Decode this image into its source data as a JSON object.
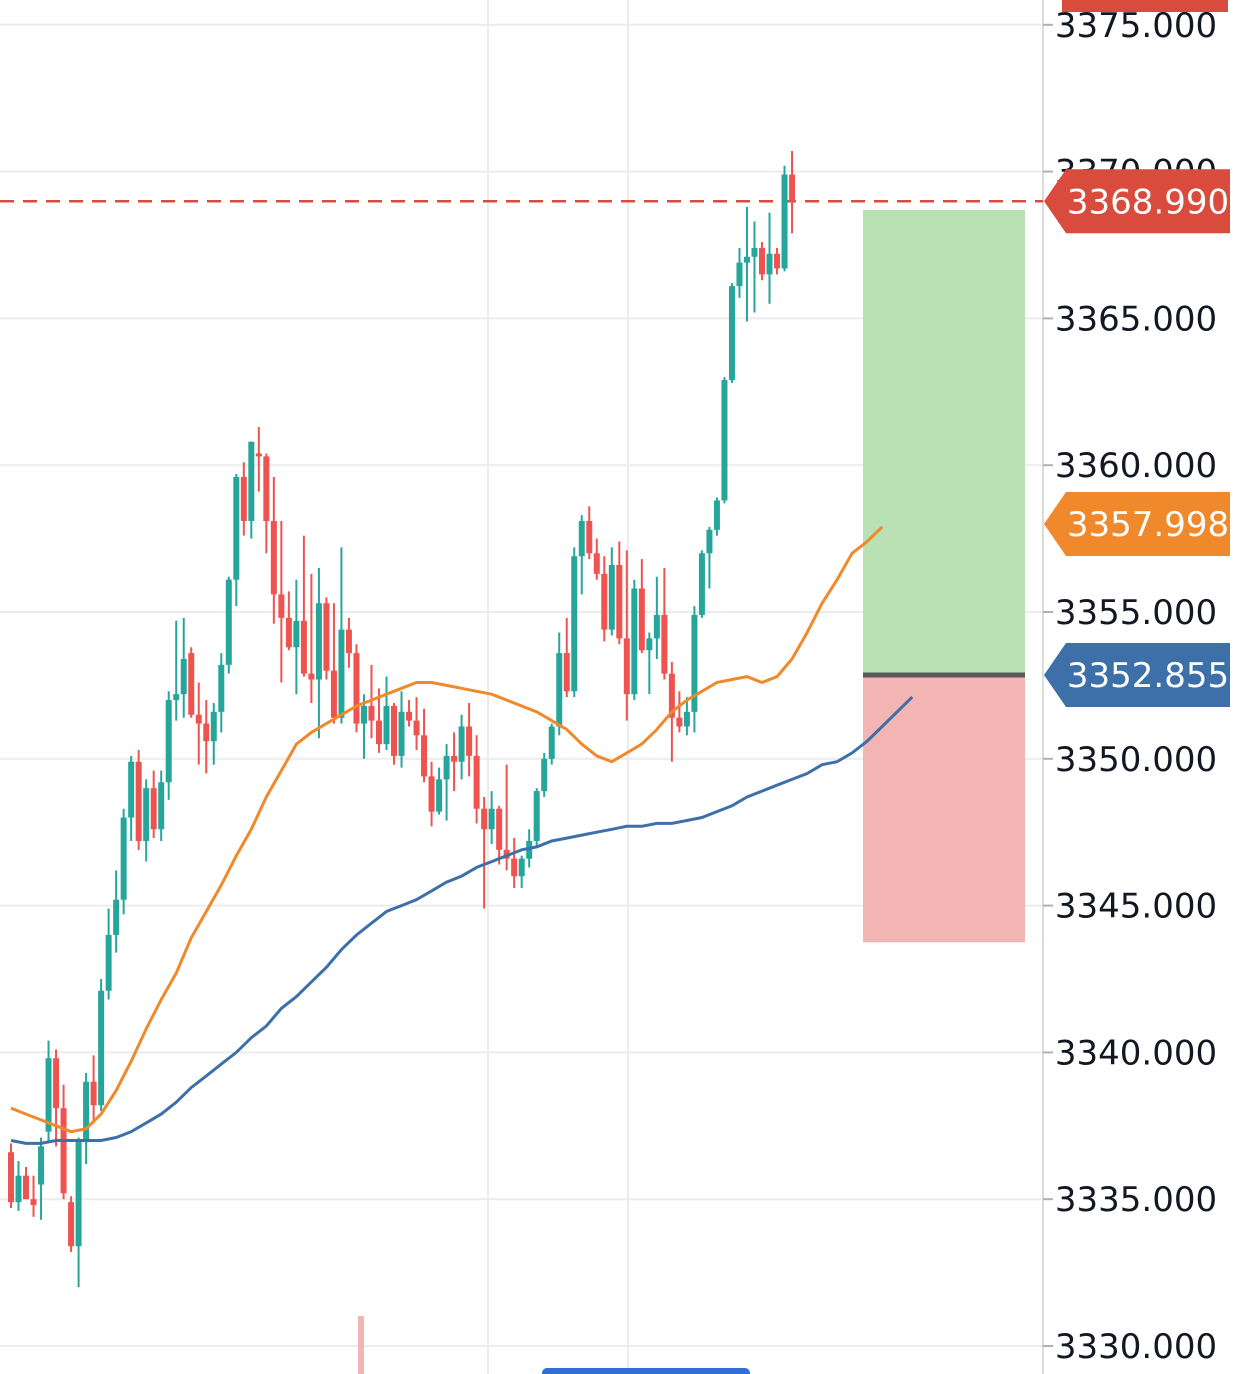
{
  "chart_data": {
    "type": "candlestick",
    "ylim": [
      3330,
      3376
    ],
    "y_ticks": [
      "3330.000",
      "3335.000",
      "3340.000",
      "3345.000",
      "3350.000",
      "3355.000",
      "3360.000",
      "3365.000",
      "3370.000",
      "3375.000"
    ],
    "grid": true,
    "colors": {
      "up": "#26a69a",
      "down": "#ef5350",
      "ma_fast": "#f0892b",
      "ma_slow": "#3d6fa8",
      "current_price": "#d94c3d",
      "entry": "#3d6fa8",
      "profit_zone": "#b9e1b3",
      "loss_zone": "#f3b4b4"
    },
    "candles": [
      [
        3336.6,
        3336.9,
        3334.7,
        3334.9
      ],
      [
        3334.9,
        3336.3,
        3334.6,
        3335.8
      ],
      [
        3335.8,
        3336.1,
        3335.0,
        3335.0
      ],
      [
        3335.0,
        3335.8,
        3334.4,
        3334.8
      ],
      [
        3335.5,
        3337.1,
        3334.3,
        3336.8
      ],
      [
        3337.3,
        3340.4,
        3337.0,
        3339.8
      ],
      [
        3339.8,
        3340.1,
        3336.8,
        3338.1
      ],
      [
        3338.1,
        3338.9,
        3335.0,
        3335.2
      ],
      [
        3334.9,
        3335.1,
        3333.2,
        3333.4
      ],
      [
        3333.4,
        3337.1,
        3332.0,
        3337.0
      ],
      [
        3337.0,
        3339.3,
        3336.2,
        3339.0
      ],
      [
        3339.0,
        3339.9,
        3337.6,
        3338.2
      ],
      [
        3338.2,
        3342.5,
        3338.0,
        3342.1
      ],
      [
        3342.1,
        3344.9,
        3341.8,
        3344.0
      ],
      [
        3344.0,
        3346.2,
        3343.4,
        3345.2
      ],
      [
        3345.2,
        3348.3,
        3344.7,
        3348.0
      ],
      [
        3348.0,
        3350.1,
        3347.2,
        3349.9
      ],
      [
        3349.9,
        3350.3,
        3346.9,
        3347.2
      ],
      [
        3347.2,
        3349.3,
        3346.5,
        3349.0
      ],
      [
        3349.0,
        3349.6,
        3347.3,
        3347.6
      ],
      [
        3347.6,
        3349.6,
        3347.2,
        3349.2
      ],
      [
        3349.2,
        3352.3,
        3348.6,
        3352.0
      ],
      [
        3352.0,
        3354.7,
        3351.3,
        3352.2
      ],
      [
        3352.2,
        3354.8,
        3351.4,
        3353.4
      ],
      [
        3353.6,
        3353.8,
        3351.4,
        3351.5
      ],
      [
        3351.5,
        3352.6,
        3349.8,
        3351.2
      ],
      [
        3351.2,
        3352.0,
        3349.5,
        3350.6
      ],
      [
        3350.6,
        3351.9,
        3349.8,
        3351.6
      ],
      [
        3351.6,
        3353.6,
        3350.9,
        3353.2
      ],
      [
        3353.2,
        3356.2,
        3352.9,
        3356.1
      ],
      [
        3356.1,
        3359.7,
        3355.2,
        3359.6
      ],
      [
        3359.6,
        3360.1,
        3357.6,
        3358.1
      ],
      [
        3358.1,
        3360.8,
        3357.5,
        3360.8
      ],
      [
        3360.4,
        3361.3,
        3359.1,
        3360.3
      ],
      [
        3360.3,
        3360.4,
        3357.0,
        3358.1
      ],
      [
        3358.1,
        3359.6,
        3354.6,
        3355.6
      ],
      [
        3355.6,
        3358.1,
        3352.6,
        3354.8
      ],
      [
        3354.8,
        3355.7,
        3353.7,
        3353.8
      ],
      [
        3353.8,
        3356.1,
        3352.2,
        3354.7
      ],
      [
        3354.7,
        3357.6,
        3352.8,
        3352.9
      ],
      [
        3352.9,
        3356.3,
        3351.9,
        3352.7
      ],
      [
        3352.7,
        3356.5,
        3350.7,
        3355.3
      ],
      [
        3355.3,
        3355.5,
        3352.7,
        3353.0
      ],
      [
        3353.0,
        3355.3,
        3351.2,
        3351.4
      ],
      [
        3351.4,
        3357.2,
        3351.2,
        3354.4
      ],
      [
        3354.4,
        3354.8,
        3353.1,
        3353.6
      ],
      [
        3353.6,
        3353.9,
        3350.9,
        3351.2
      ],
      [
        3351.2,
        3352.2,
        3350.0,
        3351.8
      ],
      [
        3351.8,
        3353.2,
        3350.7,
        3351.3
      ],
      [
        3351.3,
        3352.4,
        3350.2,
        3350.5
      ],
      [
        3350.5,
        3352.8,
        3350.3,
        3351.8
      ],
      [
        3351.8,
        3351.9,
        3349.8,
        3350.1
      ],
      [
        3350.1,
        3352.3,
        3349.7,
        3351.6
      ],
      [
        3351.6,
        3352.0,
        3351.1,
        3351.3
      ],
      [
        3351.3,
        3352.1,
        3350.3,
        3350.8
      ],
      [
        3350.8,
        3351.7,
        3349.2,
        3349.4
      ],
      [
        3349.4,
        3349.9,
        3347.7,
        3348.2
      ],
      [
        3348.2,
        3349.7,
        3348.1,
        3349.3
      ],
      [
        3349.3,
        3350.5,
        3347.9,
        3350.1
      ],
      [
        3350.1,
        3350.9,
        3348.9,
        3349.9
      ],
      [
        3349.9,
        3351.5,
        3349.3,
        3351.1
      ],
      [
        3351.1,
        3351.9,
        3349.4,
        3350.1
      ],
      [
        3350.1,
        3350.8,
        3347.8,
        3348.3
      ],
      [
        3348.3,
        3348.7,
        3344.9,
        3347.6
      ],
      [
        3347.6,
        3348.9,
        3347.1,
        3348.3
      ],
      [
        3348.3,
        3348.4,
        3346.4,
        3346.9
      ],
      [
        3346.9,
        3349.8,
        3346.2,
        3346.6
      ],
      [
        3346.6,
        3347.3,
        3345.6,
        3346.0
      ],
      [
        3346.0,
        3346.7,
        3345.6,
        3346.6
      ],
      [
        3346.6,
        3347.6,
        3346.3,
        3347.2
      ],
      [
        3347.2,
        3349.0,
        3347.0,
        3348.9
      ],
      [
        3348.9,
        3350.2,
        3348.7,
        3350.0
      ],
      [
        3350.0,
        3351.2,
        3349.8,
        3351.1
      ],
      [
        3351.1,
        3354.3,
        3350.8,
        3353.6
      ],
      [
        3353.6,
        3354.8,
        3352.1,
        3352.3
      ],
      [
        3352.3,
        3357.2,
        3352.1,
        3356.9
      ],
      [
        3356.9,
        3358.3,
        3355.6,
        3358.1
      ],
      [
        3358.1,
        3358.6,
        3356.8,
        3357.0
      ],
      [
        3357.0,
        3357.5,
        3356.1,
        3356.3
      ],
      [
        3356.3,
        3356.9,
        3354.0,
        3354.4
      ],
      [
        3354.4,
        3357.2,
        3354.2,
        3356.6
      ],
      [
        3356.6,
        3357.4,
        3353.9,
        3354.1
      ],
      [
        3354.1,
        3357.1,
        3351.3,
        3352.2
      ],
      [
        3352.2,
        3356.1,
        3352.0,
        3355.8
      ],
      [
        3355.8,
        3356.8,
        3353.6,
        3353.7
      ],
      [
        3353.7,
        3354.3,
        3352.2,
        3354.1
      ],
      [
        3354.1,
        3356.2,
        3353.4,
        3354.9
      ],
      [
        3354.9,
        3356.5,
        3352.7,
        3352.9
      ],
      [
        3352.9,
        3353.3,
        3349.9,
        3351.4
      ],
      [
        3351.4,
        3352.3,
        3350.9,
        3351.1
      ],
      [
        3351.1,
        3352.1,
        3350.8,
        3351.6
      ],
      [
        3351.6,
        3355.2,
        3350.9,
        3354.9
      ],
      [
        3354.9,
        3357.1,
        3354.8,
        3357.0
      ],
      [
        3357.0,
        3357.9,
        3355.8,
        3357.8
      ],
      [
        3357.8,
        3358.9,
        3357.6,
        3358.8
      ],
      [
        3358.8,
        3363.0,
        3358.7,
        3362.9
      ],
      [
        3362.9,
        3366.2,
        3362.8,
        3366.1
      ],
      [
        3366.1,
        3367.4,
        3365.7,
        3366.9
      ],
      [
        3366.9,
        3368.8,
        3364.9,
        3367.1
      ],
      [
        3367.1,
        3368.3,
        3365.2,
        3367.4
      ],
      [
        3367.4,
        3367.6,
        3366.3,
        3366.5
      ],
      [
        3366.5,
        3368.6,
        3365.5,
        3367.2
      ],
      [
        3367.2,
        3367.4,
        3366.5,
        3366.7
      ],
      [
        3366.7,
        3370.2,
        3366.6,
        3369.9
      ],
      [
        3369.9,
        3370.7,
        3367.9,
        3369.0
      ]
    ],
    "ma_fast": [
      [
        0,
        3338.1
      ],
      [
        2,
        3337.9
      ],
      [
        4,
        3337.7
      ],
      [
        6,
        3337.5
      ],
      [
        8,
        3337.3
      ],
      [
        10,
        3337.4
      ],
      [
        12,
        3337.9
      ],
      [
        14,
        3338.7
      ],
      [
        16,
        3339.7
      ],
      [
        18,
        3340.8
      ],
      [
        20,
        3341.8
      ],
      [
        22,
        3342.7
      ],
      [
        24,
        3343.9
      ],
      [
        26,
        3344.8
      ],
      [
        28,
        3345.7
      ],
      [
        30,
        3346.7
      ],
      [
        32,
        3347.6
      ],
      [
        34,
        3348.7
      ],
      [
        36,
        3349.6
      ],
      [
        38,
        3350.5
      ],
      [
        40,
        3350.9
      ],
      [
        42,
        3351.2
      ],
      [
        44,
        3351.5
      ],
      [
        46,
        3351.8
      ],
      [
        48,
        3352.0
      ],
      [
        50,
        3352.2
      ],
      [
        52,
        3352.4
      ],
      [
        54,
        3352.6
      ],
      [
        56,
        3352.6
      ],
      [
        58,
        3352.5
      ],
      [
        60,
        3352.4
      ],
      [
        62,
        3352.3
      ],
      [
        64,
        3352.2
      ],
      [
        66,
        3352.0
      ],
      [
        68,
        3351.8
      ],
      [
        70,
        3351.6
      ],
      [
        72,
        3351.3
      ],
      [
        74,
        3351.0
      ],
      [
        76,
        3350.5
      ],
      [
        78,
        3350.1
      ],
      [
        80,
        3349.9
      ],
      [
        82,
        3350.2
      ],
      [
        84,
        3350.5
      ],
      [
        86,
        3351.0
      ],
      [
        88,
        3351.6
      ],
      [
        90,
        3352.0
      ],
      [
        92,
        3352.3
      ],
      [
        94,
        3352.6
      ],
      [
        96,
        3352.7
      ],
      [
        98,
        3352.8
      ],
      [
        100,
        3352.6
      ],
      [
        102,
        3352.8
      ],
      [
        104,
        3353.4
      ],
      [
        106,
        3354.3
      ],
      [
        108,
        3355.3
      ],
      [
        110,
        3356.1
      ],
      [
        112,
        3357.0
      ],
      [
        114,
        3357.4
      ],
      [
        116,
        3357.9
      ]
    ],
    "ma_slow": [
      [
        0,
        3337.0
      ],
      [
        2,
        3336.9
      ],
      [
        4,
        3336.9
      ],
      [
        6,
        3337.0
      ],
      [
        8,
        3337.0
      ],
      [
        10,
        3337.0
      ],
      [
        12,
        3337.0
      ],
      [
        14,
        3337.1
      ],
      [
        16,
        3337.3
      ],
      [
        18,
        3337.6
      ],
      [
        20,
        3337.9
      ],
      [
        22,
        3338.3
      ],
      [
        24,
        3338.8
      ],
      [
        26,
        3339.2
      ],
      [
        28,
        3339.6
      ],
      [
        30,
        3340.0
      ],
      [
        32,
        3340.5
      ],
      [
        34,
        3340.9
      ],
      [
        36,
        3341.5
      ],
      [
        38,
        3341.9
      ],
      [
        40,
        3342.4
      ],
      [
        42,
        3342.9
      ],
      [
        44,
        3343.5
      ],
      [
        46,
        3344.0
      ],
      [
        48,
        3344.4
      ],
      [
        50,
        3344.8
      ],
      [
        52,
        3345.0
      ],
      [
        54,
        3345.2
      ],
      [
        56,
        3345.5
      ],
      [
        58,
        3345.8
      ],
      [
        60,
        3346.0
      ],
      [
        62,
        3346.3
      ],
      [
        64,
        3346.5
      ],
      [
        66,
        3346.7
      ],
      [
        68,
        3346.9
      ],
      [
        70,
        3347.0
      ],
      [
        72,
        3347.2
      ],
      [
        74,
        3347.3
      ],
      [
        76,
        3347.4
      ],
      [
        78,
        3347.5
      ],
      [
        80,
        3347.6
      ],
      [
        82,
        3347.7
      ],
      [
        84,
        3347.7
      ],
      [
        86,
        3347.8
      ],
      [
        88,
        3347.8
      ],
      [
        90,
        3347.9
      ],
      [
        92,
        3348.0
      ],
      [
        94,
        3348.2
      ],
      [
        96,
        3348.4
      ],
      [
        98,
        3348.7
      ],
      [
        100,
        3348.9
      ],
      [
        102,
        3349.1
      ],
      [
        104,
        3349.3
      ],
      [
        106,
        3349.5
      ],
      [
        108,
        3349.8
      ],
      [
        110,
        3349.9
      ],
      [
        112,
        3350.2
      ],
      [
        114,
        3350.6
      ],
      [
        116,
        3351.1
      ],
      [
        118,
        3351.6
      ],
      [
        120,
        3352.1
      ]
    ],
    "badges": {
      "current_price": "3368.990",
      "ma_value": "3357.998",
      "entry_price": "3352.855"
    },
    "position": {
      "entry": 3352.855,
      "take_profit": 3368.7,
      "stop_loss": 3343.75
    }
  }
}
